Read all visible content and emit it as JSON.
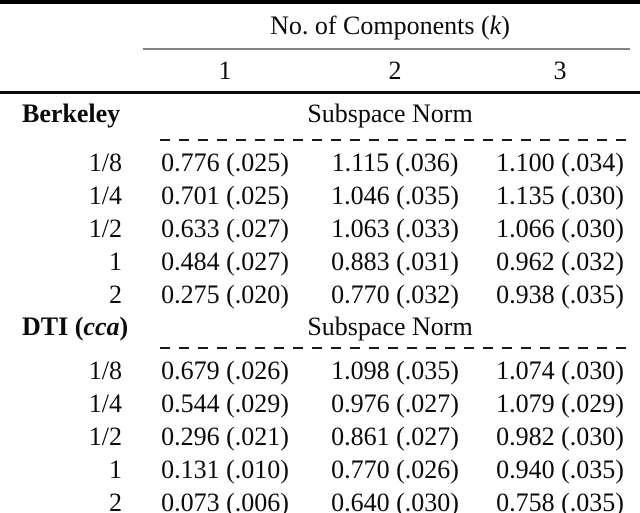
{
  "table": {
    "header": {
      "title_prefix": "No. of Components (",
      "title_var": "k",
      "title_suffix": ")",
      "columns": [
        "1",
        "2",
        "3"
      ]
    },
    "sections": [
      {
        "name_prefix": "Berkeley",
        "name_italic": "",
        "name_suffix": "",
        "metric": "Subspace Norm",
        "rows": [
          {
            "label": "1/8",
            "values": [
              "0.776 (.025)",
              "1.115 (.036)",
              "1.100 (.034)"
            ]
          },
          {
            "label": "1/4",
            "values": [
              "0.701 (.025)",
              "1.046 (.035)",
              "1.135 (.030)"
            ]
          },
          {
            "label": "1/2",
            "values": [
              "0.633 (.027)",
              "1.063 (.033)",
              "1.066 (.030)"
            ]
          },
          {
            "label": "1",
            "values": [
              "0.484 (.027)",
              "0.883 (.031)",
              "0.962 (.032)"
            ]
          },
          {
            "label": "2",
            "values": [
              "0.275 (.020)",
              "0.770 (.032)",
              "0.938 (.035)"
            ]
          }
        ]
      },
      {
        "name_prefix": "DTI (",
        "name_italic": "cca",
        "name_suffix": ")",
        "metric": "Subspace Norm",
        "rows": [
          {
            "label": "1/8",
            "values": [
              "0.679 (.026)",
              "1.098 (.035)",
              "1.074 (.030)"
            ]
          },
          {
            "label": "1/4",
            "values": [
              "0.544 (.029)",
              "0.976 (.027)",
              "1.079 (.029)"
            ]
          },
          {
            "label": "1/2",
            "values": [
              "0.296 (.021)",
              "0.861 (.027)",
              "0.982 (.030)"
            ]
          },
          {
            "label": "1",
            "values": [
              "0.131 (.010)",
              "0.770 (.026)",
              "0.940 (.035)"
            ]
          },
          {
            "label": "2",
            "values": [
              "0.073 (.006)",
              "0.640 (.030)",
              "0.758 (.035)"
            ]
          }
        ]
      }
    ],
    "colors": {
      "rule_black": "#000000",
      "rule_gray": "#828282",
      "dash": "#1a1a1a",
      "text": "#0a0a0a",
      "background": "#ffffff"
    }
  }
}
